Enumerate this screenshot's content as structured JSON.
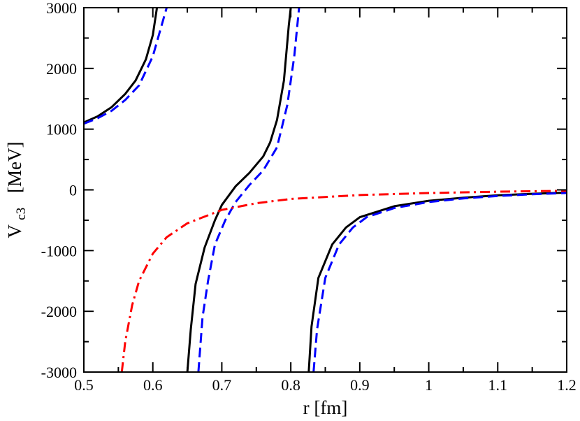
{
  "chart_data": {
    "type": "line",
    "title": "",
    "xlabel": "r  [fm]",
    "ylabel_main": "V",
    "ylabel_sub": "c3",
    "ylabel_unit": "[MeV]",
    "xlim": [
      0.5,
      1.2
    ],
    "ylim": [
      -3000,
      3000
    ],
    "xticks": [
      0.5,
      0.6,
      0.7,
      0.8,
      0.9,
      1.0,
      1.1,
      1.2
    ],
    "xtick_labels": [
      "0.5",
      "0.6",
      "0.7",
      "0.8",
      "0.9",
      "1",
      "1.1",
      "1.2"
    ],
    "yticks": [
      -3000,
      -2000,
      -1000,
      0,
      1000,
      2000,
      3000
    ],
    "ytick_labels": [
      "-3000",
      "-2000",
      "-1000",
      "0",
      "1000",
      "2000",
      "3000"
    ],
    "grid": false,
    "legend": false,
    "series": [
      {
        "style": "solid",
        "color": "#000000",
        "segments": [
          [
            [
              0.5,
              1110
            ],
            [
              0.52,
              1210
            ],
            [
              0.54,
              1360
            ],
            [
              0.56,
              1580
            ],
            [
              0.575,
              1800
            ],
            [
              0.59,
              2150
            ],
            [
              0.6,
              2550
            ],
            [
              0.606,
              3000
            ]
          ],
          [
            [
              0.65,
              -3000
            ],
            [
              0.655,
              -2300
            ],
            [
              0.662,
              -1550
            ],
            [
              0.675,
              -950
            ],
            [
              0.69,
              -500
            ],
            [
              0.7,
              -250
            ],
            [
              0.72,
              60
            ],
            [
              0.74,
              280
            ],
            [
              0.76,
              550
            ],
            [
              0.77,
              780
            ],
            [
              0.78,
              1150
            ],
            [
              0.79,
              1800
            ],
            [
              0.797,
              2700
            ],
            [
              0.8,
              3000
            ]
          ],
          [
            [
              0.826,
              -3000
            ],
            [
              0.83,
              -2250
            ],
            [
              0.84,
              -1450
            ],
            [
              0.86,
              -900
            ],
            [
              0.88,
              -620
            ],
            [
              0.9,
              -450
            ],
            [
              0.95,
              -270
            ],
            [
              1.0,
              -180
            ],
            [
              1.05,
              -130
            ],
            [
              1.1,
              -90
            ],
            [
              1.15,
              -65
            ],
            [
              1.2,
              -45
            ]
          ]
        ]
      },
      {
        "style": "dashed",
        "color": "#0000ff",
        "segments": [
          [
            [
              0.5,
              1090
            ],
            [
              0.52,
              1180
            ],
            [
              0.54,
              1300
            ],
            [
              0.56,
              1480
            ],
            [
              0.58,
              1720
            ],
            [
              0.6,
              2200
            ],
            [
              0.61,
              2600
            ],
            [
              0.62,
              3000
            ]
          ],
          [
            [
              0.666,
              -3000
            ],
            [
              0.672,
              -2100
            ],
            [
              0.68,
              -1500
            ],
            [
              0.69,
              -900
            ],
            [
              0.705,
              -500
            ],
            [
              0.72,
              -200
            ],
            [
              0.74,
              80
            ],
            [
              0.76,
              320
            ],
            [
              0.78,
              700
            ],
            [
              0.795,
              1400
            ],
            [
              0.805,
              2200
            ],
            [
              0.812,
              3000
            ]
          ],
          [
            [
              0.833,
              -3000
            ],
            [
              0.838,
              -2300
            ],
            [
              0.85,
              -1450
            ],
            [
              0.87,
              -900
            ],
            [
              0.89,
              -620
            ],
            [
              0.91,
              -450
            ],
            [
              0.95,
              -300
            ],
            [
              1.0,
              -200
            ],
            [
              1.05,
              -140
            ],
            [
              1.1,
              -100
            ],
            [
              1.15,
              -72
            ],
            [
              1.2,
              -52
            ]
          ]
        ]
      },
      {
        "style": "dashdot",
        "color": "#ff0000",
        "segments": [
          [
            [
              0.555,
              -3000
            ],
            [
              0.56,
              -2500
            ],
            [
              0.57,
              -1900
            ],
            [
              0.58,
              -1500
            ],
            [
              0.6,
              -1050
            ],
            [
              0.62,
              -780
            ],
            [
              0.65,
              -550
            ],
            [
              0.7,
              -330
            ],
            [
              0.75,
              -220
            ],
            [
              0.8,
              -150
            ],
            [
              0.9,
              -85
            ],
            [
              1.0,
              -52
            ],
            [
              1.1,
              -30
            ],
            [
              1.2,
              -15
            ]
          ]
        ]
      }
    ]
  }
}
